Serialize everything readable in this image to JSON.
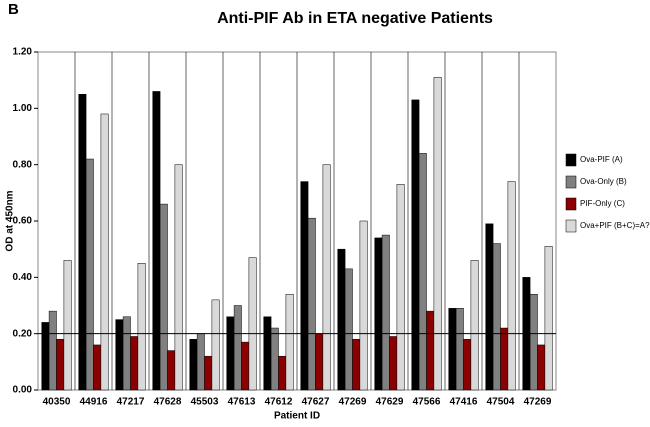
{
  "chart_data": {
    "type": "bar",
    "panel_label": "B",
    "title": "Anti-PIF Ab in ETA negative Patients",
    "x_label": "Patient ID",
    "y_label": "OD at 450nm",
    "categories": [
      "40350",
      "44916",
      "47217",
      "47628",
      "45503",
      "47613",
      "47612",
      "47627",
      "47269",
      "47629",
      "47566",
      "47416",
      "47504",
      "47269"
    ],
    "series": [
      {
        "name": "Ova-PIF (A)",
        "color": "#000000",
        "values": [
          0.24,
          1.05,
          0.25,
          1.06,
          0.18,
          0.26,
          0.26,
          0.74,
          0.5,
          0.54,
          1.03,
          0.29,
          0.59,
          0.4
        ]
      },
      {
        "name": "Ova-Only (B)",
        "color": "#808080",
        "values": [
          0.28,
          0.82,
          0.26,
          0.66,
          0.2,
          0.3,
          0.22,
          0.61,
          0.43,
          0.55,
          0.84,
          0.29,
          0.52,
          0.34
        ]
      },
      {
        "name": "PIF-Only (C)",
        "color": "#8b0000",
        "values": [
          0.18,
          0.16,
          0.19,
          0.14,
          0.12,
          0.17,
          0.12,
          0.2,
          0.18,
          0.19,
          0.28,
          0.18,
          0.22,
          0.16
        ]
      },
      {
        "name": "Ova+PIF (B+C)=A?",
        "color": "#d9d9d9",
        "values": [
          0.46,
          0.98,
          0.45,
          0.8,
          0.32,
          0.47,
          0.34,
          0.8,
          0.6,
          0.73,
          1.11,
          0.46,
          0.74,
          0.51
        ]
      }
    ],
    "reference_line": 0.2,
    "ylim": [
      0,
      1.2
    ],
    "yticks": [
      {
        "value": 0,
        "label": "0.00"
      },
      {
        "value": 0.2,
        "label": "0.20"
      },
      {
        "value": 0.4,
        "label": "0.40"
      },
      {
        "value": 0.6,
        "label": "0.60"
      },
      {
        "value": 0.8,
        "label": "0.80"
      },
      {
        "value": 1.0,
        "label": "1.00"
      },
      {
        "value": 1.2,
        "label": "1.20"
      }
    ],
    "legend": "right"
  }
}
